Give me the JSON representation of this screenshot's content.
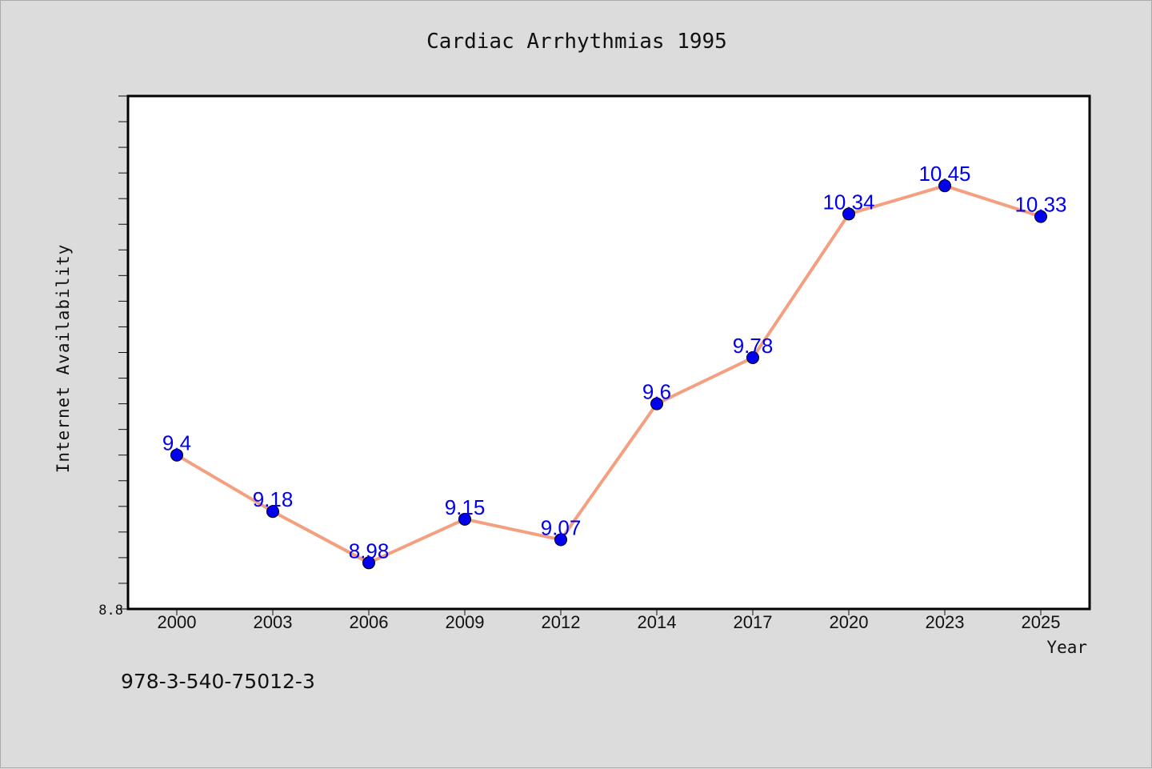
{
  "chart_data": {
    "type": "line",
    "title": "Cardiac Arrhythmias 1995",
    "xlabel": "Year",
    "ylabel": "Internet Availability",
    "categories": [
      "2000",
      "2003",
      "2006",
      "2009",
      "2012",
      "2014",
      "2017",
      "2020",
      "2023",
      "2025"
    ],
    "series": [
      {
        "values": [
          9.4,
          9.18,
          8.98,
          9.15,
          9.07,
          9.6,
          9.78,
          10.34,
          10.45,
          10.33
        ],
        "labels": [
          "9.4",
          "9.18",
          "8.98",
          "9.15",
          "9.07",
          "9.6",
          "9.78",
          "10.34",
          "10.45",
          "10.33"
        ]
      }
    ],
    "y_tick_label": "8.8",
    "ylim": [
      8.8,
      10.8
    ],
    "grid": false,
    "colors": {
      "line": "#f4a080",
      "marker": "#0000ee",
      "data_label": "#0000ee",
      "plot_background": "#ffffff",
      "page_background": "#dcdcdc"
    }
  },
  "annotation": "978-3-540-75012-3"
}
